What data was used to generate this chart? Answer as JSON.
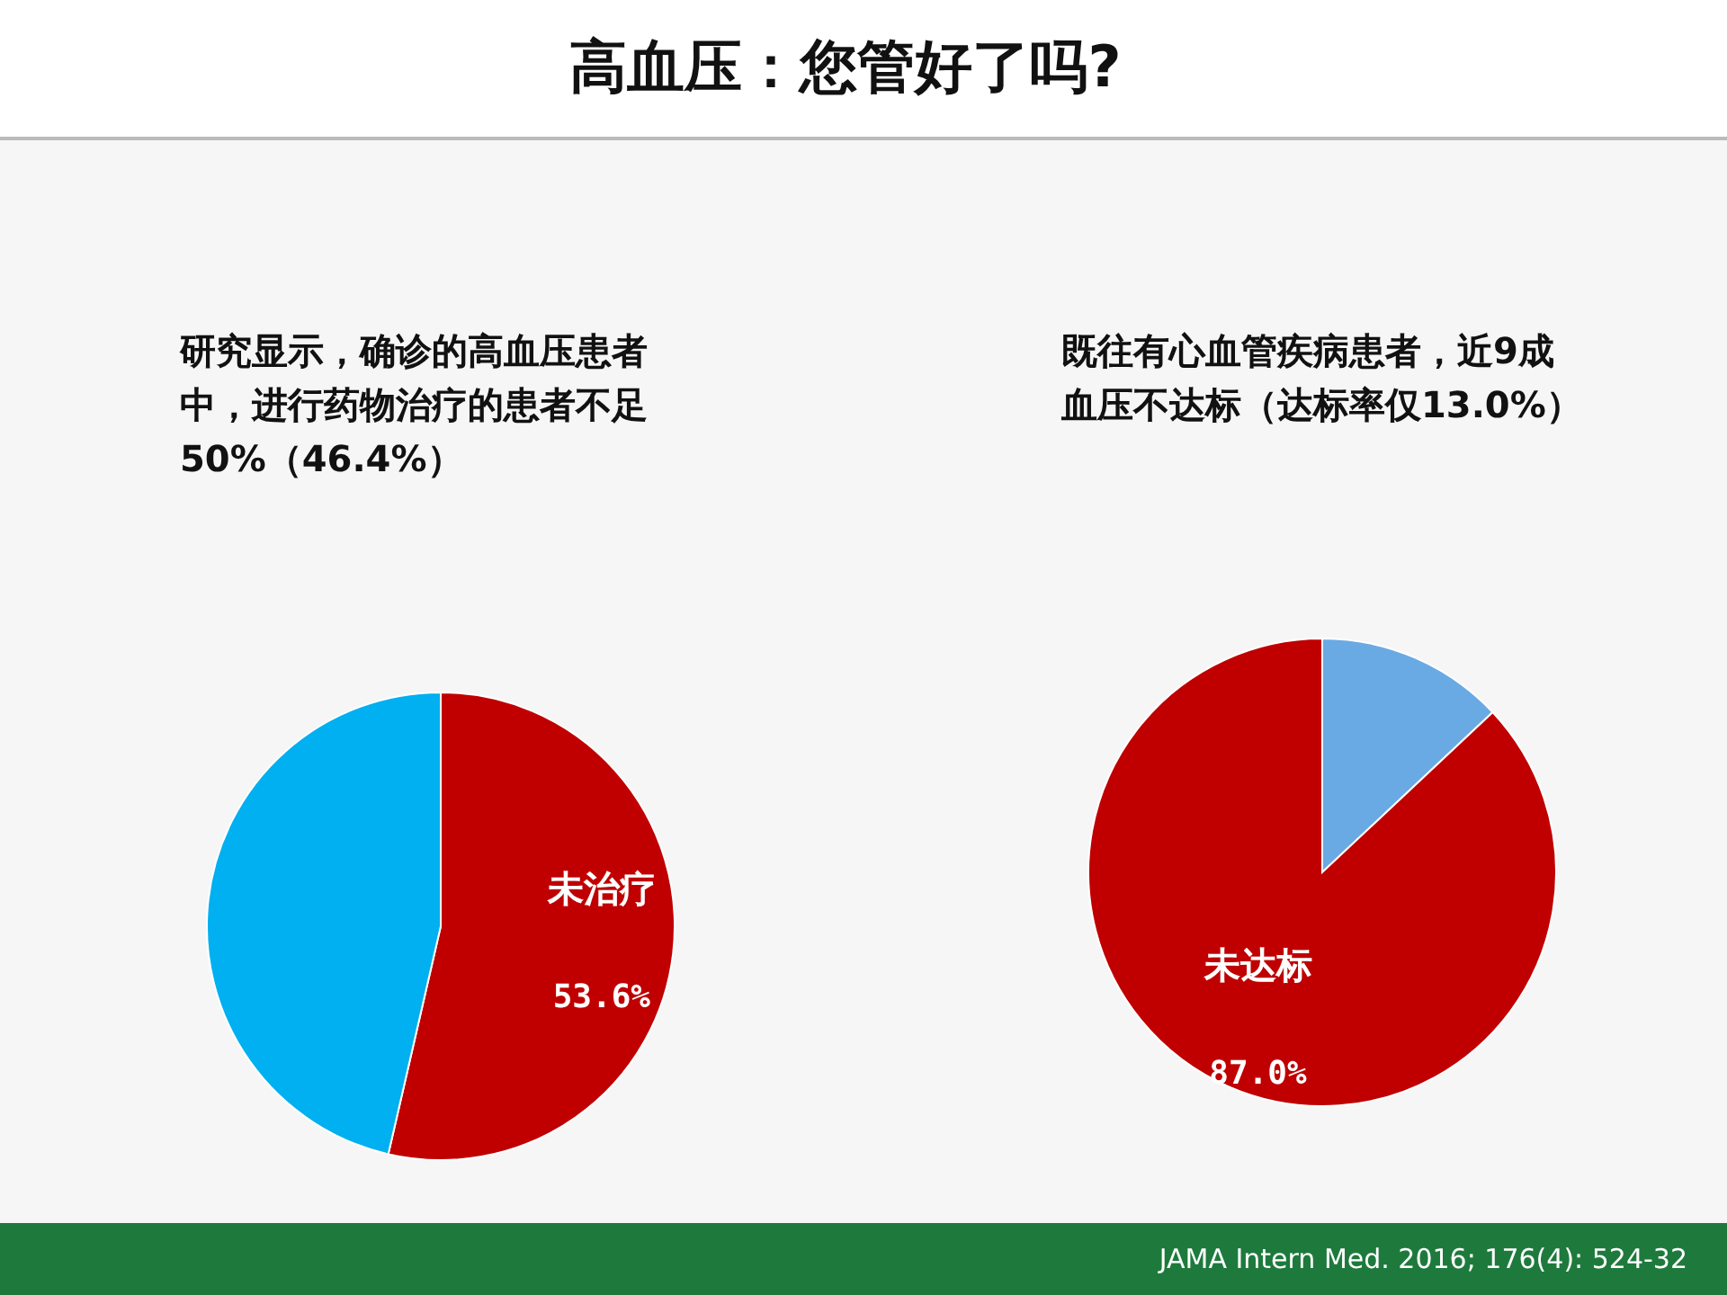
{
  "chart_data": [
    {
      "type": "pie",
      "title": "高血压：您管好了吗?",
      "annotations": [
        "研究显示，确诊的高血压患者中，进行药物治疗的患者不足50%（46.4%）"
      ],
      "categories": [
        "未治疗",
        null
      ],
      "values": [
        53.6,
        46.4
      ],
      "value_labels": [
        "53.6%",
        null
      ],
      "colors": [
        "#c00000",
        "#00b0f0"
      ],
      "legend": false
    },
    {
      "type": "pie",
      "annotations": [
        "既往有心血管疾病患者，近9成血压不达标（达标率仅13.0%）",
        "JAMA Intern Med. 2016; 176(4): 524-32"
      ],
      "categories": [
        null,
        "未达标"
      ],
      "values": [
        13.0,
        87.0
      ],
      "value_labels": [
        null,
        "87.0%"
      ],
      "colors": [
        "#6aaae4",
        "#c00000"
      ],
      "legend": false
    }
  ]
}
